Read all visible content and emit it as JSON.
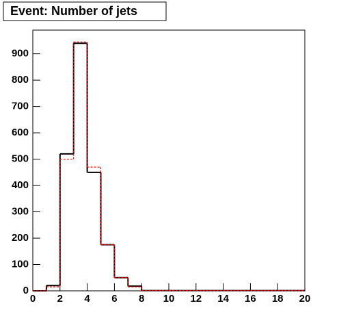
{
  "chart_data": {
    "type": "histogram",
    "title": "Event: Number of jets",
    "bins": [
      0,
      1,
      2,
      3,
      4,
      5,
      6,
      7,
      8,
      9,
      10,
      11,
      12,
      13,
      14,
      15,
      16,
      17,
      18,
      19,
      20
    ],
    "series": [
      {
        "color": "#000000",
        "values": [
          0,
          20,
          520,
          940,
          450,
          175,
          50,
          18,
          1,
          1,
          1,
          1,
          1,
          1,
          1,
          1,
          1,
          1,
          1,
          1
        ]
      },
      {
        "color": "#ff0000",
        "values": [
          0,
          15,
          500,
          945,
          470,
          175,
          50,
          15,
          1,
          1,
          1,
          1,
          1,
          1,
          1,
          1,
          1,
          1,
          1,
          1
        ]
      }
    ],
    "xlim": [
      0,
      20
    ],
    "xticks": [
      0,
      2,
      4,
      6,
      8,
      10,
      12,
      14,
      16,
      18,
      20
    ],
    "ylim": [
      0,
      990
    ],
    "yticks": [
      0,
      100,
      200,
      300,
      400,
      500,
      600,
      700,
      800,
      900
    ]
  }
}
